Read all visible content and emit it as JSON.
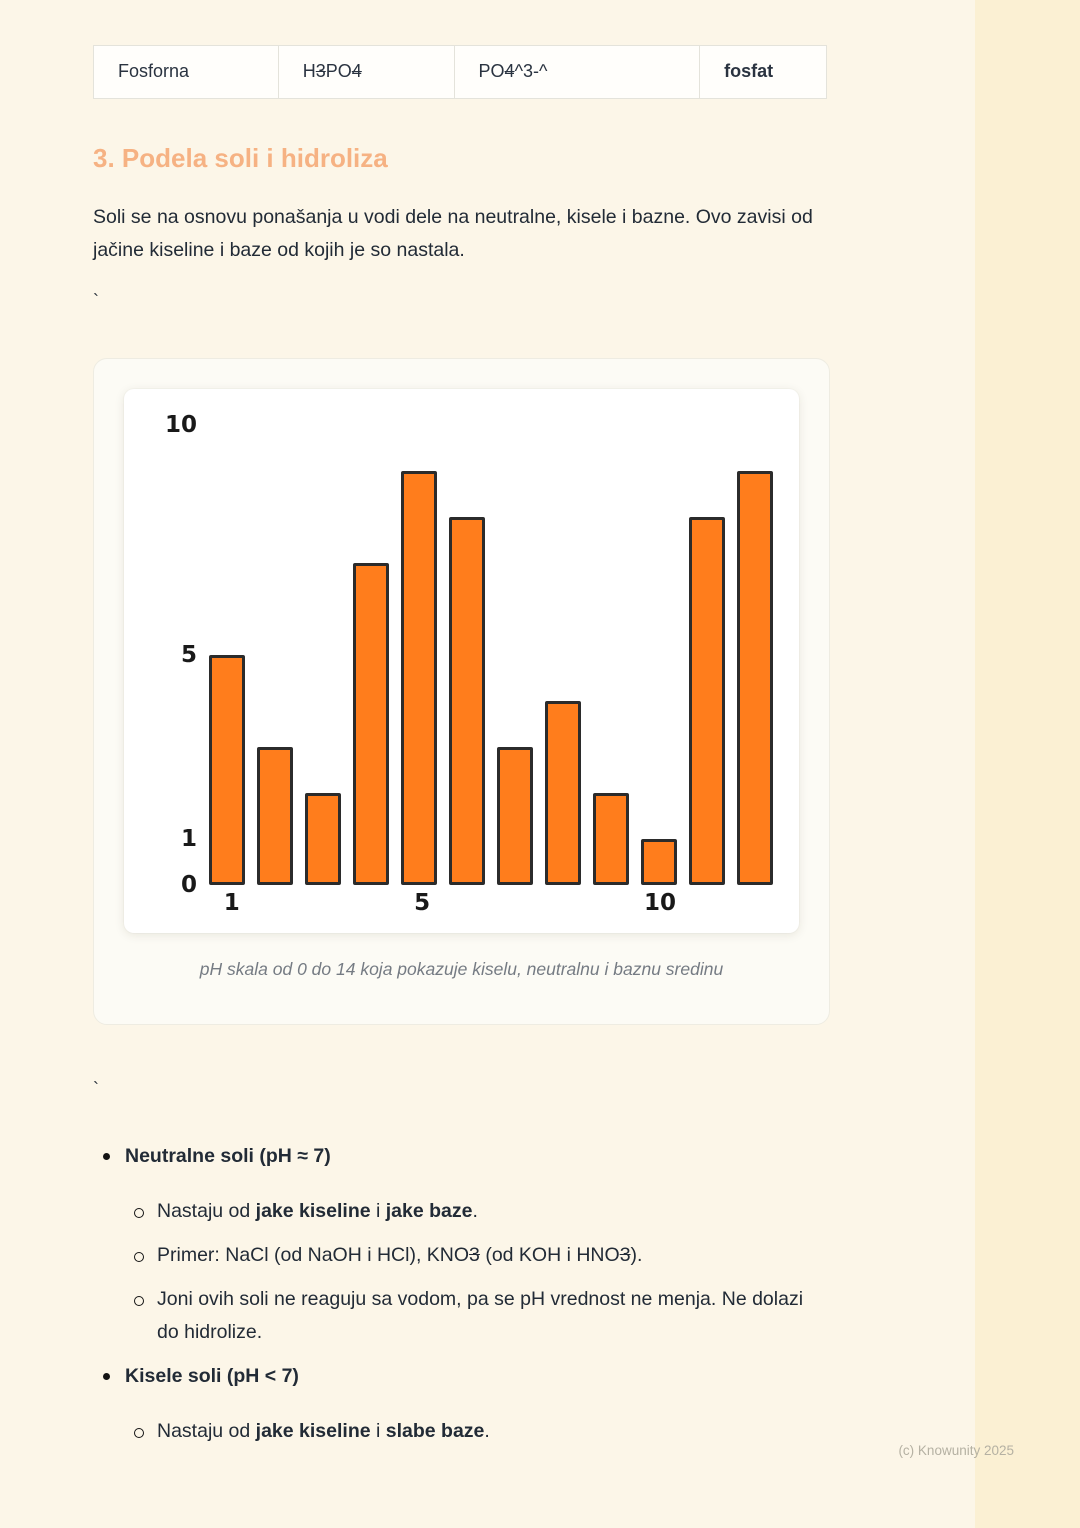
{
  "colors": {
    "page_bg": "#fcf6e8",
    "band_bg": "#fbf0d3",
    "heading_accent": "#f6b283",
    "bar_fill": "#ff7d1c",
    "bar_border": "#2b2b2b"
  },
  "table": {
    "rows": [
      {
        "cells": [
          {
            "segments": [
              {
                "t": "Fosforna"
              }
            ]
          },
          {
            "segments": [
              {
                "t": "H"
              },
              {
                "t": "3",
                "s": true
              },
              {
                "t": "PO"
              },
              {
                "t": "4",
                "s": true
              }
            ]
          },
          {
            "segments": [
              {
                "t": "PO"
              },
              {
                "t": "4",
                "s": true
              },
              {
                "t": "^3-^"
              }
            ]
          },
          {
            "segments": [
              {
                "t": "fosfat",
                "b": true
              }
            ]
          }
        ]
      }
    ]
  },
  "section": {
    "heading": "3. Podela soli i hidroliza",
    "intro": "Soli se na osnovu ponašanja u vodi dele na neutralne, kisele i bazne. Ovo zavisi od jačine kiseline i baze od kojih je so nastala.",
    "tick_top": "`",
    "tick_bottom": "`"
  },
  "chart_data": {
    "type": "bar",
    "values": [
      5,
      3,
      2,
      7,
      9,
      8,
      3,
      4,
      2,
      1,
      8,
      9
    ],
    "x_tick_labels": [
      "1",
      "",
      "",
      "",
      "5",
      "",
      "",
      "",
      "",
      "10",
      "",
      ""
    ],
    "y_ticks": [
      {
        "value": 10,
        "label": "10"
      },
      {
        "value": 5,
        "label": "5"
      },
      {
        "value": 1,
        "label": "1"
      },
      {
        "value": 0,
        "label": "0"
      }
    ],
    "ylim": [
      0,
      10
    ],
    "grid": false,
    "legend": false,
    "title": "",
    "caption": "pH skala od 0 do 14 koja pokazuje kiselu, neutralnu i baznu sredinu"
  },
  "bullets": [
    {
      "level": 1,
      "segments": [
        {
          "t": "Neutralne soli (pH ≈ 7)",
          "b": true
        }
      ]
    },
    {
      "level": 2,
      "segments": [
        {
          "t": "Nastaju od "
        },
        {
          "t": "jake kiseline",
          "b": true
        },
        {
          "t": " i "
        },
        {
          "t": "jake baze",
          "b": true
        },
        {
          "t": "."
        }
      ]
    },
    {
      "level": 2,
      "segments": [
        {
          "t": "Primer: NaCl (od NaOH i HCl), KNO"
        },
        {
          "t": "3",
          "s": true
        },
        {
          "t": " (od KOH i HNO"
        },
        {
          "t": "3",
          "s": true
        },
        {
          "t": ")."
        }
      ]
    },
    {
      "level": 2,
      "segments": [
        {
          "t": "Joni ovih soli ne reaguju sa vodom, pa se pH vrednost ne menja. Ne dolazi do hidrolize."
        }
      ]
    },
    {
      "level": 1,
      "segments": [
        {
          "t": "Kisele soli (pH < 7)",
          "b": true
        }
      ]
    },
    {
      "level": 2,
      "segments": [
        {
          "t": "Nastaju od "
        },
        {
          "t": "jake kiseline",
          "b": true
        },
        {
          "t": " i "
        },
        {
          "t": "slabe baze",
          "b": true
        },
        {
          "t": "."
        }
      ]
    }
  ],
  "footer": {
    "copyright": "(c) Knowunity 2025"
  }
}
